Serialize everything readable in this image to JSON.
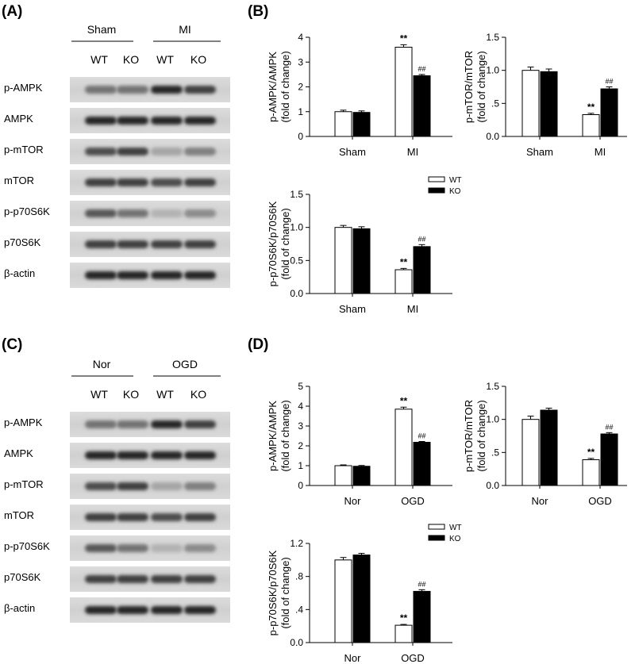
{
  "panel_labels": [
    "(A)",
    "(B)",
    "(C)",
    "(D)"
  ],
  "legend": [
    {
      "label": "WT",
      "fill": "#ffffff"
    },
    {
      "label": "KO",
      "fill": "#000000"
    }
  ],
  "blots": [
    {
      "groups": [
        "Sham",
        "MI"
      ],
      "lanes": [
        "WT",
        "KO",
        "WT",
        "KO"
      ],
      "rows": [
        "p-AMPK",
        "AMPK",
        "p-mTOR",
        "mTOR",
        "p-p70S6K",
        "p70S6K",
        "β-actin"
      ]
    },
    {
      "groups": [
        "Nor",
        "OGD"
      ],
      "lanes": [
        "WT",
        "KO",
        "WT",
        "KO"
      ],
      "rows": [
        "p-AMPK",
        "AMPK",
        "p-mTOR",
        "mTOR",
        "p-p70S6K",
        "p70S6K",
        "β-actin"
      ]
    }
  ],
  "chart_data": [
    {
      "type": "bar",
      "panel": "B",
      "ylabel": [
        "p-AMPK/AMPK",
        "(fold of change)"
      ],
      "categories": [
        "Sham",
        "MI"
      ],
      "ylim": [
        0,
        4
      ],
      "yticks": [
        "0",
        "1",
        "2",
        "3",
        "4"
      ],
      "series": [
        {
          "name": "WT",
          "values": [
            1.0,
            3.6
          ],
          "errors": [
            0.06,
            0.1
          ]
        },
        {
          "name": "KO",
          "values": [
            0.97,
            2.45
          ],
          "errors": [
            0.06,
            0.05
          ]
        }
      ],
      "annotations": {
        "WT": [
          "",
          "**"
        ],
        "KO": [
          "",
          "##"
        ]
      }
    },
    {
      "type": "bar",
      "panel": "B",
      "ylabel": [
        "p-mTOR/mTOR",
        "(fold of change)"
      ],
      "categories": [
        "Sham",
        "MI"
      ],
      "ylim": [
        0,
        1.5
      ],
      "yticks": [
        "0.0",
        ".5",
        "1.0",
        "1.5"
      ],
      "series": [
        {
          "name": "WT",
          "values": [
            1.0,
            0.33
          ],
          "errors": [
            0.05,
            0.02
          ]
        },
        {
          "name": "KO",
          "values": [
            0.98,
            0.72
          ],
          "errors": [
            0.04,
            0.03
          ]
        }
      ],
      "annotations": {
        "WT": [
          "",
          "**"
        ],
        "KO": [
          "",
          "##"
        ]
      }
    },
    {
      "type": "bar",
      "panel": "B",
      "ylabel": [
        "p-p70S6K/p70S6K",
        "(fold of change)"
      ],
      "categories": [
        "Sham",
        "MI"
      ],
      "ylim": [
        0,
        1.5
      ],
      "yticks": [
        "0.0",
        "0.5",
        "1.0",
        "1.5"
      ],
      "series": [
        {
          "name": "WT",
          "values": [
            1.0,
            0.36
          ],
          "errors": [
            0.03,
            0.02
          ]
        },
        {
          "name": "KO",
          "values": [
            0.98,
            0.71
          ],
          "errors": [
            0.03,
            0.03
          ]
        }
      ],
      "annotations": {
        "WT": [
          "",
          "**"
        ],
        "KO": [
          "",
          "##"
        ]
      }
    },
    {
      "type": "bar",
      "panel": "D",
      "ylabel": [
        "p-AMPK/AMPK",
        "(fold of change)"
      ],
      "categories": [
        "Nor",
        "OGD"
      ],
      "ylim": [
        0,
        5
      ],
      "yticks": [
        "0",
        "1",
        "2",
        "3",
        "4",
        "5"
      ],
      "series": [
        {
          "name": "WT",
          "values": [
            1.0,
            3.85
          ],
          "errors": [
            0.04,
            0.1
          ]
        },
        {
          "name": "KO",
          "values": [
            0.97,
            2.18
          ],
          "errors": [
            0.04,
            0.04
          ]
        }
      ],
      "annotations": {
        "WT": [
          "",
          "**"
        ],
        "KO": [
          "",
          "##"
        ]
      }
    },
    {
      "type": "bar",
      "panel": "D",
      "ylabel": [
        "p-mTOR/mTOR",
        "(fold of change)"
      ],
      "categories": [
        "Nor",
        "OGD"
      ],
      "ylim": [
        0,
        1.5
      ],
      "yticks": [
        "0.0",
        ".5",
        "1.0",
        "1.5"
      ],
      "series": [
        {
          "name": "WT",
          "values": [
            1.0,
            0.39
          ],
          "errors": [
            0.05,
            0.02
          ]
        },
        {
          "name": "KO",
          "values": [
            1.14,
            0.78
          ],
          "errors": [
            0.03,
            0.02
          ]
        }
      ],
      "annotations": {
        "WT": [
          "",
          "**"
        ],
        "KO": [
          "",
          "##"
        ]
      }
    },
    {
      "type": "bar",
      "panel": "D",
      "ylabel": [
        "p-p70S6K/p70S6K",
        "(fold of change)"
      ],
      "categories": [
        "Nor",
        "OGD"
      ],
      "ylim": [
        0,
        1.2
      ],
      "yticks": [
        "0.0",
        ".4",
        ".8",
        "1.2"
      ],
      "series": [
        {
          "name": "WT",
          "values": [
            1.0,
            0.21
          ],
          "errors": [
            0.03,
            0.01
          ]
        },
        {
          "name": "KO",
          "values": [
            1.06,
            0.62
          ],
          "errors": [
            0.02,
            0.02
          ]
        }
      ],
      "annotations": {
        "WT": [
          "",
          "**"
        ],
        "KO": [
          "",
          "##"
        ]
      }
    }
  ]
}
